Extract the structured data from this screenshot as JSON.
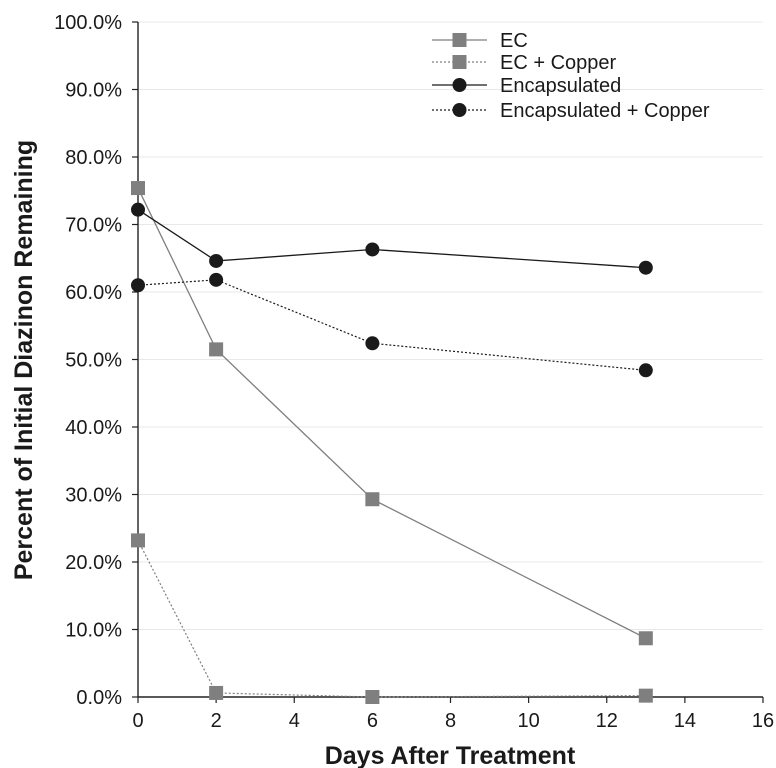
{
  "chart_data": {
    "type": "line",
    "xlabel": "Days After Treatment",
    "ylabel": "Percent of Initial Diazinon Remaining",
    "xlim": [
      0,
      16
    ],
    "ylim": [
      0,
      100
    ],
    "xticks": [
      0,
      2,
      4,
      6,
      8,
      10,
      12,
      14,
      16
    ],
    "yticks": [
      0,
      10,
      20,
      30,
      40,
      50,
      60,
      70,
      80,
      90,
      100
    ],
    "ytick_labels": [
      "0.0%",
      "10.0%",
      "20.0%",
      "30.0%",
      "40.0%",
      "50.0%",
      "60.0%",
      "70.0%",
      "80.0%",
      "90.0%",
      "100.0%"
    ],
    "grid": "horizontal",
    "legend_position": "top-right",
    "series": [
      {
        "name": "EC",
        "marker": "square",
        "line": "solid",
        "color": "#7f7f7f",
        "x": [
          0,
          2,
          6,
          13
        ],
        "y": [
          75.4,
          51.5,
          29.3,
          8.7
        ]
      },
      {
        "name": "EC + Copper",
        "marker": "square",
        "line": "dotted",
        "color": "#7f7f7f",
        "x": [
          0,
          2,
          6,
          13
        ],
        "y": [
          23.2,
          0.6,
          0.0,
          0.2
        ]
      },
      {
        "name": "Encapsulated",
        "marker": "circle",
        "line": "solid",
        "color": "#1a1a1a",
        "x": [
          0,
          2,
          6,
          13
        ],
        "y": [
          72.2,
          64.6,
          66.3,
          63.6
        ]
      },
      {
        "name": "Encapsulated + Copper",
        "marker": "circle",
        "line": "dotted",
        "color": "#1a1a1a",
        "x": [
          0,
          2,
          6,
          13
        ],
        "y": [
          61.0,
          61.8,
          52.4,
          48.4
        ]
      }
    ]
  }
}
